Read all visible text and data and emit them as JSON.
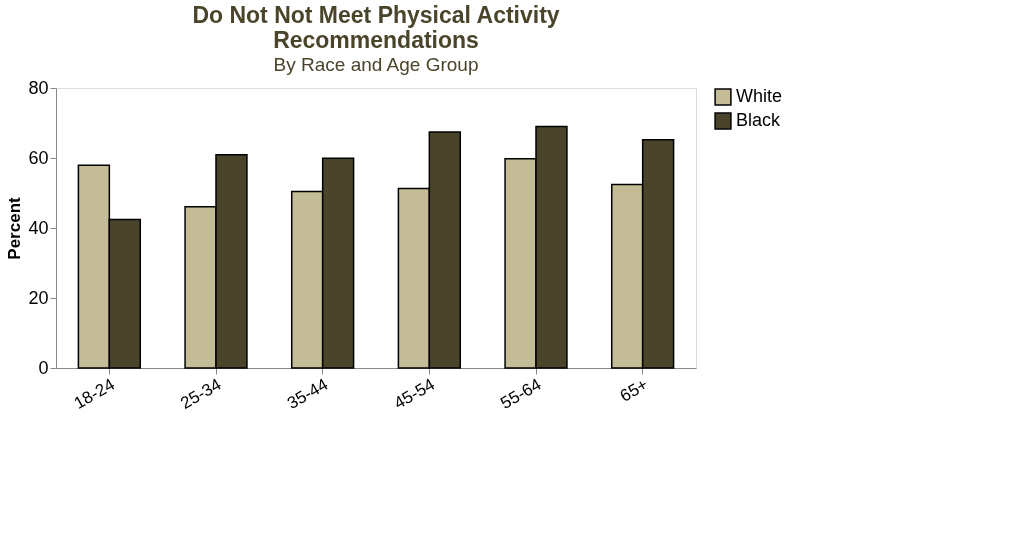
{
  "chart_data": {
    "type": "bar",
    "title": "Do Not Not Meet Physical Activity Recommendations",
    "subtitle": "By Race and Age Group",
    "ylabel": "Percent",
    "categories": [
      "18-24",
      "25-34",
      "35-44",
      "45-54",
      "55-64",
      "65+"
    ],
    "series": [
      {
        "name": "White",
        "color": "#c4bc96",
        "values": [
          57.9,
          46.1,
          50.4,
          51.3,
          59.8,
          52.4
        ]
      },
      {
        "name": "Black",
        "color": "#4a442a",
        "values": [
          42.4,
          60.9,
          59.9,
          67.4,
          69.0,
          65.2
        ]
      }
    ],
    "ylim": [
      0,
      80
    ],
    "yticks": [
      0,
      20,
      40,
      60,
      80
    ],
    "grid": false,
    "legend": "right"
  }
}
